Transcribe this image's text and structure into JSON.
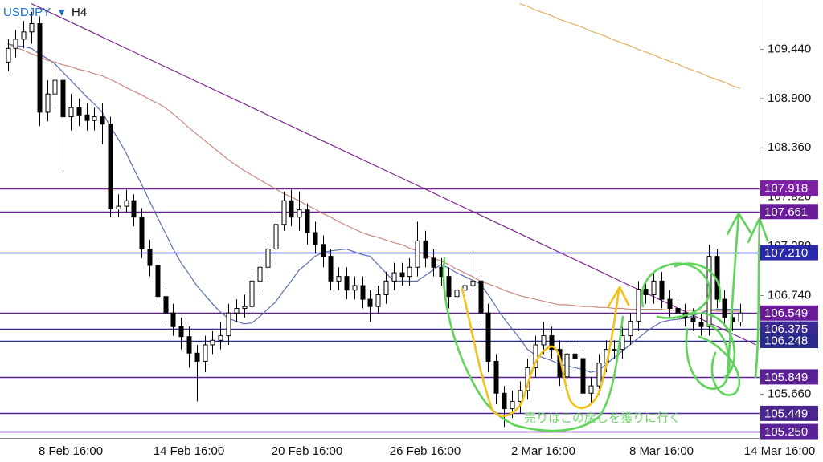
{
  "chart_data": {
    "type": "candlestick",
    "symbol": "USDJPY",
    "timeframe": "H4",
    "categories": [
      null,
      null,
      null,
      null,
      null,
      null,
      null,
      null,
      "8 Feb 16:00",
      null,
      null,
      null,
      null,
      null,
      null,
      null,
      null,
      null,
      null,
      null,
      null,
      null,
      null,
      "14 Feb 16:00",
      null,
      null,
      null,
      null,
      null,
      null,
      null,
      null,
      null,
      null,
      null,
      null,
      null,
      null,
      "20 Feb 16:00",
      null,
      null,
      null,
      null,
      null,
      null,
      null,
      null,
      null,
      null,
      null,
      null,
      null,
      null,
      "26 Feb 16:00",
      null,
      null,
      null,
      null,
      null,
      null,
      null,
      null,
      null,
      null,
      null,
      null,
      null,
      null,
      "2 Mar 16:00",
      null,
      null,
      null,
      null,
      null,
      null,
      null,
      null,
      null,
      null,
      null,
      null,
      null,
      null,
      "8 Mar 16:00",
      null,
      null,
      null,
      null,
      null,
      null,
      null,
      null,
      null,
      null,
      null,
      null,
      null,
      null,
      "14 Mar 16:00"
    ],
    "open": [
      109.3,
      109.45,
      109.55,
      109.63,
      109.72,
      108.75,
      108.95,
      109.1,
      108.7,
      108.8,
      108.72,
      108.66,
      108.7,
      108.62,
      107.69,
      107.72,
      107.78,
      107.6,
      107.25,
      107.07,
      106.73,
      106.55,
      106.4,
      106.29,
      106.11,
      106.02,
      106.2,
      106.25,
      106.3,
      106.55,
      106.6,
      106.62,
      106.9,
      107.05,
      107.25,
      107.52,
      107.78,
      107.6,
      107.68,
      107.43,
      107.3,
      107.17,
      106.9,
      106.95,
      106.8,
      106.85,
      106.7,
      106.62,
      106.75,
      106.9,
      106.99,
      106.95,
      107.05,
      107.34,
      107.15,
      107.05,
      106.95,
      106.73,
      106.8,
      106.85,
      106.9,
      106.55,
      106.02,
      105.67,
      105.5,
      105.58,
      105.7,
      105.95,
      106.2,
      106.3,
      106.15,
      105.85,
      106.1,
      106.05,
      105.67,
      105.75,
      106.0,
      106.15,
      106.15,
      106.3,
      106.46,
      106.81,
      106.75,
      106.9,
      106.7,
      106.6,
      106.55,
      106.5,
      106.45,
      106.4,
      107.17,
      106.7,
      106.5,
      106.45,
      null,
      null,
      null,
      null,
      null
    ],
    "high": [
      109.55,
      109.65,
      109.75,
      109.85,
      109.8,
      109.1,
      109.25,
      109.15,
      108.95,
      108.9,
      108.85,
      108.8,
      108.85,
      108.7,
      107.85,
      107.9,
      107.85,
      107.7,
      107.35,
      107.15,
      106.85,
      106.65,
      106.5,
      106.4,
      106.2,
      106.3,
      106.35,
      106.45,
      106.65,
      106.7,
      106.75,
      107.0,
      107.15,
      107.35,
      107.65,
      107.88,
      107.9,
      107.88,
      107.75,
      107.55,
      107.4,
      107.25,
      107.05,
      107.05,
      106.95,
      106.95,
      106.8,
      106.85,
      107.0,
      107.1,
      107.1,
      107.15,
      107.55,
      107.45,
      107.25,
      107.15,
      107.05,
      106.9,
      106.95,
      107.2,
      107.0,
      106.65,
      106.1,
      105.75,
      105.7,
      105.8,
      106.05,
      106.3,
      106.45,
      106.4,
      106.25,
      106.2,
      106.2,
      106.15,
      105.85,
      106.1,
      106.25,
      106.25,
      106.4,
      106.55,
      106.9,
      106.9,
      107.0,
      107.0,
      106.8,
      106.7,
      106.65,
      106.6,
      106.55,
      107.3,
      107.25,
      106.8,
      106.6,
      106.65,
      null,
      null,
      null,
      null,
      null
    ],
    "low": [
      109.2,
      109.35,
      109.45,
      109.5,
      108.6,
      108.65,
      108.85,
      108.1,
      108.55,
      108.6,
      108.55,
      108.55,
      108.4,
      107.6,
      107.6,
      107.65,
      107.5,
      107.15,
      106.95,
      106.65,
      106.45,
      106.3,
      106.15,
      105.95,
      105.58,
      105.9,
      106.1,
      106.15,
      106.2,
      106.45,
      106.5,
      106.55,
      106.8,
      106.95,
      107.15,
      107.45,
      107.5,
      107.45,
      107.3,
      107.2,
      107.05,
      106.8,
      106.8,
      106.7,
      106.7,
      106.6,
      106.45,
      106.55,
      106.65,
      106.8,
      106.85,
      106.85,
      106.95,
      107.05,
      106.95,
      106.85,
      106.6,
      106.65,
      106.7,
      106.75,
      106.45,
      105.9,
      105.55,
      105.3,
      105.4,
      105.45,
      105.6,
      105.85,
      106.1,
      106.05,
      105.75,
      105.75,
      105.95,
      105.55,
      105.55,
      105.65,
      105.9,
      106.05,
      106.05,
      106.2,
      106.35,
      106.65,
      106.65,
      106.6,
      106.5,
      106.45,
      106.4,
      106.35,
      106.3,
      106.3,
      106.6,
      106.4,
      106.35,
      106.4,
      null,
      null,
      null,
      null,
      null
    ],
    "close": [
      109.45,
      109.55,
      109.63,
      109.72,
      108.75,
      108.95,
      109.1,
      108.7,
      108.8,
      108.72,
      108.66,
      108.7,
      108.62,
      107.69,
      107.72,
      107.78,
      107.6,
      107.25,
      107.07,
      106.73,
      106.55,
      106.4,
      106.29,
      106.11,
      106.02,
      106.2,
      106.25,
      106.3,
      106.55,
      106.6,
      106.62,
      106.9,
      107.05,
      107.25,
      107.52,
      107.78,
      107.6,
      107.68,
      107.43,
      107.3,
      107.17,
      106.9,
      106.95,
      106.8,
      106.85,
      106.7,
      106.62,
      106.75,
      106.9,
      106.99,
      106.95,
      107.05,
      107.34,
      107.15,
      107.05,
      106.95,
      106.73,
      106.8,
      106.85,
      106.9,
      106.55,
      106.02,
      105.67,
      105.5,
      105.58,
      105.7,
      105.95,
      106.2,
      106.3,
      106.15,
      105.85,
      106.1,
      106.05,
      105.67,
      105.75,
      106.0,
      106.15,
      106.15,
      106.3,
      106.46,
      106.81,
      106.75,
      106.9,
      106.7,
      106.6,
      106.55,
      106.5,
      106.45,
      106.4,
      107.17,
      106.7,
      106.5,
      106.45,
      106.55,
      null,
      null,
      null,
      null,
      null
    ],
    "up_color": "#ffffff",
    "down_color": "#000000",
    "ma": [
      {
        "color": "#5a6fb0",
        "values": [
          109.5,
          109.48,
          109.47,
          109.45,
          109.39,
          109.34,
          109.28,
          109.19,
          109.1,
          109.01,
          108.92,
          108.84,
          108.75,
          108.6,
          108.46,
          108.31,
          108.13,
          107.96,
          107.78,
          107.6,
          107.43,
          107.25,
          107.1,
          106.98,
          106.85,
          106.75,
          106.65,
          106.56,
          106.49,
          106.46,
          106.43,
          106.44,
          106.51,
          106.59,
          106.67,
          106.79,
          106.9,
          107.02,
          107.09,
          107.17,
          107.21,
          107.23,
          107.24,
          107.25,
          107.22,
          107.19,
          107.17,
          107.08,
          106.99,
          106.9,
          106.9,
          106.9,
          106.9,
          106.96,
          107.02,
          107.08,
          107.04,
          106.99,
          106.95,
          106.91,
          106.87,
          106.75,
          106.62,
          106.49,
          106.38,
          106.27,
          106.15,
          106.09,
          106.06,
          106.03,
          105.99,
          105.97,
          105.95,
          105.93,
          105.9,
          105.92,
          105.99,
          106.06,
          106.13,
          106.2,
          106.27,
          106.34,
          106.4,
          106.45,
          106.47,
          106.48,
          106.49,
          106.52,
          106.55,
          106.58,
          106.59,
          106.59,
          106.59,
          106.59,
          null,
          null,
          null,
          null,
          null
        ]
      },
      {
        "color": "#c98a80",
        "values": [
          109.5,
          109.46,
          109.43,
          109.39,
          109.36,
          109.32,
          109.3,
          109.27,
          109.25,
          109.22,
          109.2,
          109.17,
          109.15,
          109.11,
          109.07,
          109.02,
          108.98,
          108.94,
          108.89,
          108.85,
          108.8,
          108.73,
          108.66,
          108.58,
          108.51,
          108.44,
          108.37,
          108.3,
          108.23,
          108.17,
          108.11,
          108.06,
          108.01,
          107.96,
          107.91,
          107.86,
          107.82,
          107.78,
          107.73,
          107.69,
          107.64,
          107.6,
          107.55,
          107.51,
          107.47,
          107.43,
          107.4,
          107.38,
          107.35,
          107.32,
          107.3,
          107.26,
          107.23,
          107.19,
          107.15,
          107.12,
          107.08,
          107.03,
          106.99,
          106.95,
          106.9,
          106.87,
          106.84,
          106.8,
          106.77,
          106.74,
          106.72,
          106.7,
          106.68,
          106.66,
          106.64,
          106.64,
          106.63,
          106.62,
          106.62,
          106.61,
          106.61,
          106.6,
          106.6,
          106.59,
          106.59,
          106.59,
          106.59,
          106.59,
          106.58,
          106.58,
          106.58,
          106.58,
          106.58,
          106.58,
          106.57,
          106.57,
          106.57,
          106.57,
          null,
          null,
          null,
          null,
          null
        ]
      },
      {
        "color": "#e0b060",
        "values": [
          null,
          null,
          null,
          null,
          null,
          null,
          null,
          null,
          null,
          null,
          null,
          null,
          null,
          null,
          null,
          null,
          null,
          null,
          null,
          null,
          null,
          null,
          null,
          null,
          null,
          null,
          null,
          null,
          null,
          null,
          null,
          null,
          null,
          null,
          null,
          null,
          null,
          null,
          null,
          null,
          null,
          null,
          null,
          null,
          null,
          null,
          null,
          null,
          null,
          null,
          null,
          null,
          null,
          null,
          null,
          null,
          null,
          null,
          null,
          null,
          null,
          null,
          null,
          null,
          null,
          109.94,
          109.91,
          109.87,
          109.84,
          109.81,
          109.77,
          109.74,
          109.71,
          109.68,
          109.64,
          109.61,
          109.58,
          109.54,
          109.51,
          109.48,
          109.44,
          109.41,
          109.38,
          109.34,
          109.31,
          109.28,
          109.24,
          109.21,
          109.18,
          109.14,
          109.11,
          109.08,
          109.04,
          109.01,
          null,
          null,
          null,
          null,
          null
        ]
      }
    ],
    "trendline": {
      "color": "#7a2a8a",
      "x": [
        3,
        95
      ],
      "values": [
        109.94,
        106.2
      ]
    },
    "levels": [
      {
        "value": 107.918,
        "label": "107.918",
        "color": "#7b1fa2"
      },
      {
        "value": 107.661,
        "label": "107.661",
        "color": "#6a1b9a"
      },
      {
        "value": 107.21,
        "label": "107.210",
        "color": "#2a2aa8"
      },
      {
        "value": 106.549,
        "label": "106.549",
        "color": "#6a1b9a"
      },
      {
        "value": 106.375,
        "label": "106.375",
        "color": "#3a2a90"
      },
      {
        "value": 106.248,
        "label": "106.248",
        "color": "#2a2a8a"
      },
      {
        "value": 105.849,
        "label": "105.849",
        "color": "#5b2196"
      },
      {
        "value": 105.449,
        "label": "105.449",
        "color": "#4a2590"
      },
      {
        "value": 105.25,
        "label": "105.250",
        "color": "#5b2196"
      }
    ],
    "ylim": [
      105.18,
      109.98
    ],
    "yticks": [
      {
        "value": 105.66,
        "label": "105.660"
      },
      {
        "value": 106.2,
        "label": "106.200"
      },
      {
        "value": 106.74,
        "label": "106.740"
      },
      {
        "value": 107.28,
        "label": "107.280"
      },
      {
        "value": 107.82,
        "label": "107.820"
      },
      {
        "value": 108.36,
        "label": "108.360"
      },
      {
        "value": 108.9,
        "label": "108.900"
      },
      {
        "value": 109.44,
        "label": "109.440"
      }
    ],
    "annotation": {
      "text": "売りはこの戻しを獲りに行く",
      "color": "#6fd66a"
    }
  }
}
